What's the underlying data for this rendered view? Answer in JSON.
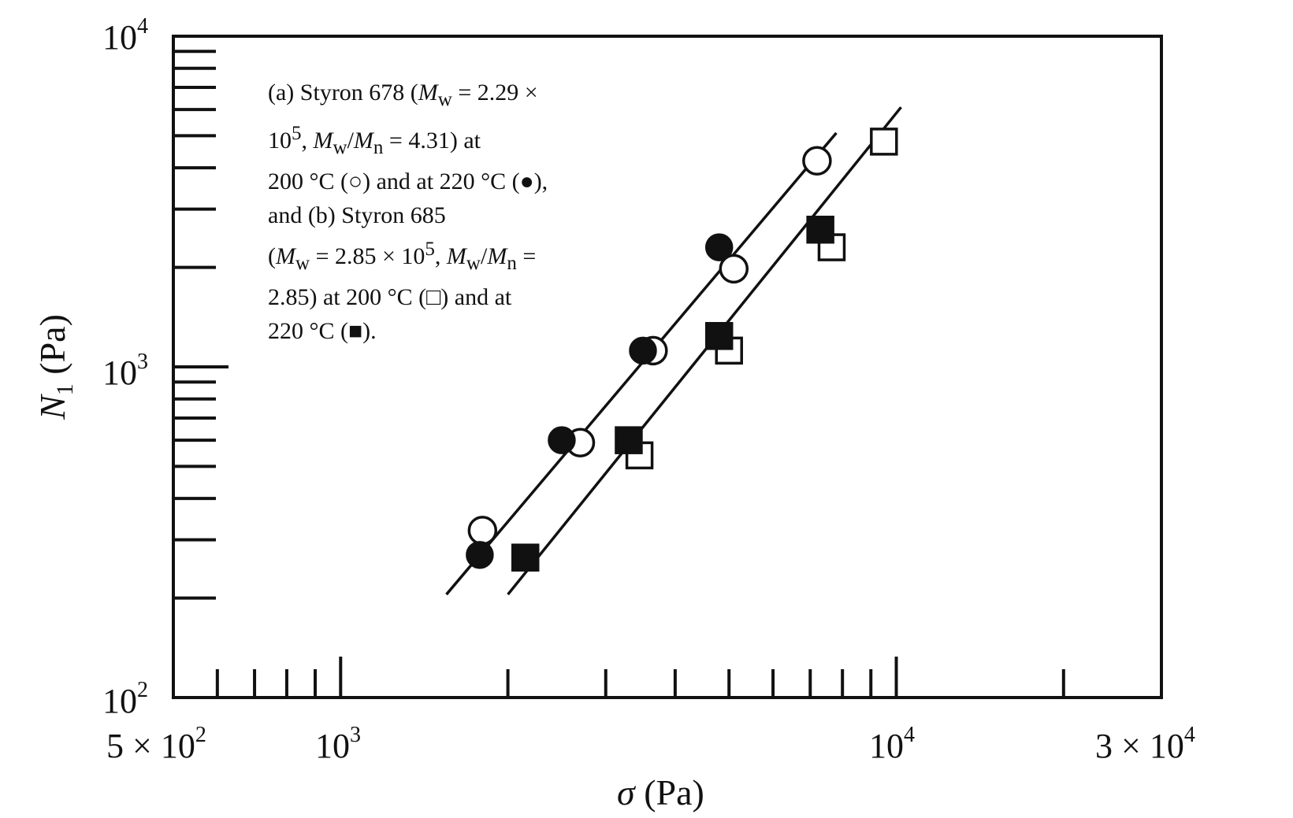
{
  "chart_data": {
    "type": "scatter",
    "title": "",
    "xlabel_symbol": "σ",
    "xlabel_unit": "(Pa)",
    "ylabel_symbol": "N",
    "ylabel_sub": "1",
    "ylabel_unit": "(Pa)",
    "xscale": "log",
    "yscale": "log",
    "xlim": [
      500,
      30000
    ],
    "ylim": [
      100,
      10000
    ],
    "grid": false,
    "x_tick_labels": [
      {
        "value": 500,
        "mantissa": "5 × ",
        "base": "10",
        "exp": "2"
      },
      {
        "value": 1000,
        "mantissa": "",
        "base": "10",
        "exp": "3"
      },
      {
        "value": 10000,
        "mantissa": "",
        "base": "10",
        "exp": "4"
      },
      {
        "value": 30000,
        "mantissa": "3 × ",
        "base": "10",
        "exp": "4"
      }
    ],
    "y_tick_labels": [
      {
        "value": 100,
        "base": "10",
        "exp": "2"
      },
      {
        "value": 1000,
        "base": "10",
        "exp": "3"
      },
      {
        "value": 10000,
        "base": "10",
        "exp": "4"
      }
    ],
    "legend": {
      "placement": "top-left",
      "lines": [
        "(a) Styron 678 (M_w = 2.29 ×",
        "10^5, M_w/M_n = 4.31) at",
        "200 °C (○) and at 220 °C (●),",
        "and (b) Styron 685",
        "(M_w = 2.85 × 10^5, M_w/M_n =",
        "2.85) at 200 °C (□) and at",
        "220 °C (■)."
      ]
    },
    "series": [
      {
        "marker": "circle-open",
        "points": [
          [
            1800,
            320
          ],
          [
            2700,
            590
          ],
          [
            3650,
            1120
          ],
          [
            5100,
            1980
          ],
          [
            7200,
            4200
          ]
        ]
      },
      {
        "marker": "circle-filled",
        "points": [
          [
            1780,
            270
          ],
          [
            2500,
            600
          ],
          [
            3500,
            1120
          ],
          [
            4800,
            2300
          ]
        ]
      },
      {
        "marker": "square-open",
        "points": [
          [
            3450,
            540
          ],
          [
            5000,
            1120
          ],
          [
            7650,
            2300
          ],
          [
            9500,
            4800
          ]
        ]
      },
      {
        "marker": "square-filled",
        "points": [
          [
            2150,
            265
          ],
          [
            3300,
            600
          ],
          [
            4800,
            1240
          ],
          [
            7300,
            2600
          ]
        ]
      }
    ],
    "fit_lines": [
      {
        "for": "Styron 678",
        "from": [
          1550,
          205
        ],
        "to": [
          7800,
          5100
        ]
      },
      {
        "for": "Styron 685",
        "from": [
          2000,
          205
        ],
        "to": [
          10200,
          6100
        ]
      }
    ]
  }
}
